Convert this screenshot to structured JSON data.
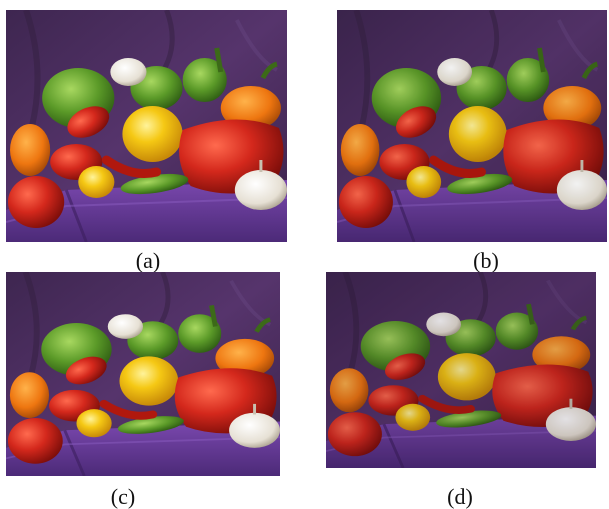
{
  "figure": {
    "panels": [
      {
        "id": "a",
        "caption": "(a)"
      },
      {
        "id": "b",
        "caption": "(b)"
      },
      {
        "id": "c",
        "caption": "(c)"
      },
      {
        "id": "d",
        "caption": "(d)"
      }
    ]
  },
  "colors": {
    "background_cloth": "#4b2d5e",
    "table_cloth": "#6a3d9a",
    "red_pepper": "#d42a1e",
    "yellow_pepper": "#f2c418",
    "orange_pepper": "#f07a12",
    "green_pepper": "#5d9a2a",
    "garlic": "#ece7dc"
  }
}
